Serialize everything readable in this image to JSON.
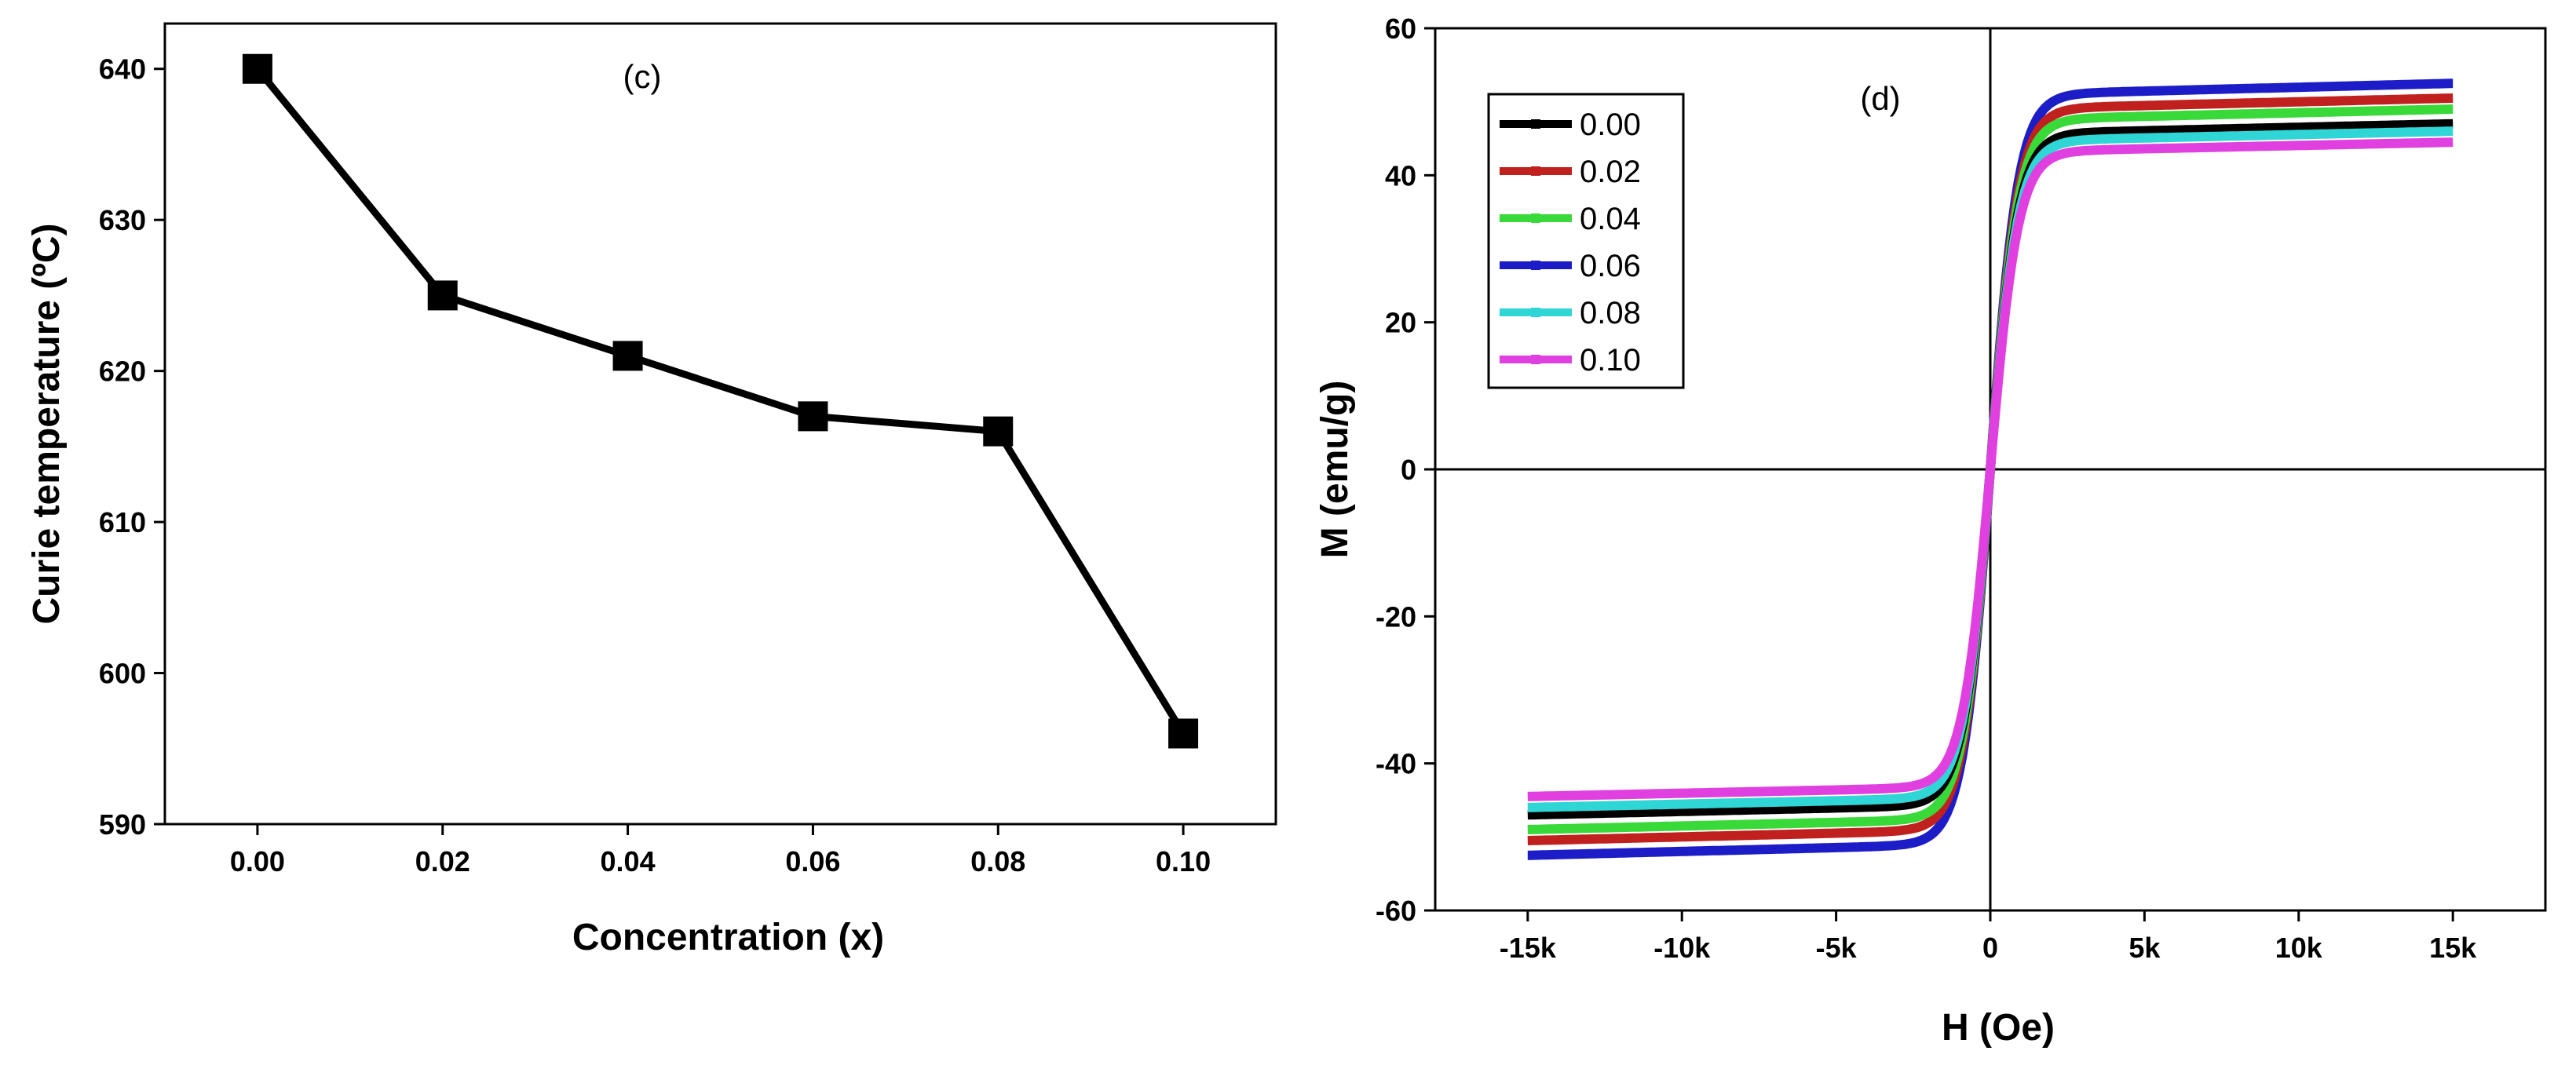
{
  "chart_data": [
    {
      "panel_tag": "(c)",
      "type": "line",
      "xlabel": "Concentration (x)",
      "ylabel": "Curie temperature (ºC)",
      "x": [
        0.0,
        0.02,
        0.04,
        0.06,
        0.08,
        0.1
      ],
      "x_tick_labels": [
        "0.00",
        "0.02",
        "0.04",
        "0.06",
        "0.08",
        "0.10"
      ],
      "y": [
        640,
        625,
        621,
        617,
        616,
        596
      ],
      "y_ticks": [
        590,
        600,
        610,
        620,
        630,
        640
      ],
      "xlim": [
        -0.01,
        0.11
      ],
      "ylim": [
        590,
        643
      ],
      "marker": "square",
      "color": "#000000",
      "grid": false
    },
    {
      "panel_tag": "(d)",
      "type": "line",
      "xlabel": "H (Oe)",
      "ylabel": "M (emu/g)",
      "xlim": [
        -18000,
        18000
      ],
      "ylim": [
        -60,
        60
      ],
      "x_ticks": [
        -15000,
        -10000,
        -5000,
        0,
        5000,
        10000,
        15000
      ],
      "x_tick_labels": [
        "-15k",
        "-10k",
        "-5k",
        "0",
        "5k",
        "10k",
        "15k"
      ],
      "y_ticks": [
        -60,
        -40,
        -20,
        0,
        20,
        40,
        60
      ],
      "y_tick_labels": [
        "-60",
        "-40",
        "-20",
        "0",
        "20",
        "40",
        "60"
      ],
      "legend_position": "top-left",
      "grid": false,
      "series": [
        {
          "name": "0.00",
          "color": "#000000",
          "Ms": 47.0
        },
        {
          "name": "0.02",
          "color": "#c0201e",
          "Ms": 50.5
        },
        {
          "name": "0.04",
          "color": "#3ad93a",
          "Ms": 49.0
        },
        {
          "name": "0.06",
          "color": "#1d1dc8",
          "Ms": 52.5
        },
        {
          "name": "0.08",
          "color": "#30d5d5",
          "Ms": 46.0
        },
        {
          "name": "0.10",
          "color": "#e040e0",
          "Ms": 44.5
        }
      ]
    }
  ]
}
